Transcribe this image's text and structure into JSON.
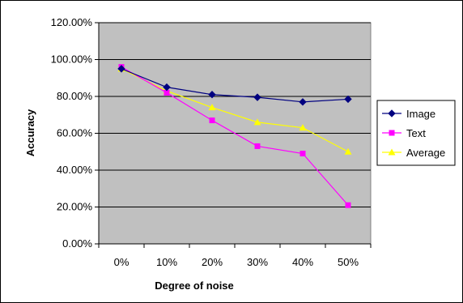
{
  "chart_data": {
    "type": "line",
    "categories": [
      "0%",
      "10%",
      "20%",
      "30%",
      "40%",
      "50%"
    ],
    "series": [
      {
        "name": "Image",
        "values": [
          95.0,
          85.0,
          81.0,
          79.5,
          77.0,
          78.5
        ],
        "color": "#000080",
        "marker": "diamond"
      },
      {
        "name": "Text",
        "values": [
          96.0,
          82.0,
          67.0,
          53.0,
          49.0,
          21.0
        ],
        "color": "#ff00ff",
        "marker": "square"
      },
      {
        "name": "Average",
        "values": [
          95.0,
          83.0,
          74.0,
          66.0,
          63.0,
          50.0
        ],
        "color": "#ffff00",
        "marker": "triangle"
      }
    ],
    "y_ticks": [
      "0.00%",
      "20.00%",
      "40.00%",
      "60.00%",
      "80.00%",
      "100.00%",
      "120.00%"
    ],
    "ylim": [
      0,
      120
    ],
    "xlabel": "Degree of noise",
    "ylabel": "Accuracy",
    "grid": true,
    "legend": "right",
    "plot_background": "#c0c0c0"
  }
}
